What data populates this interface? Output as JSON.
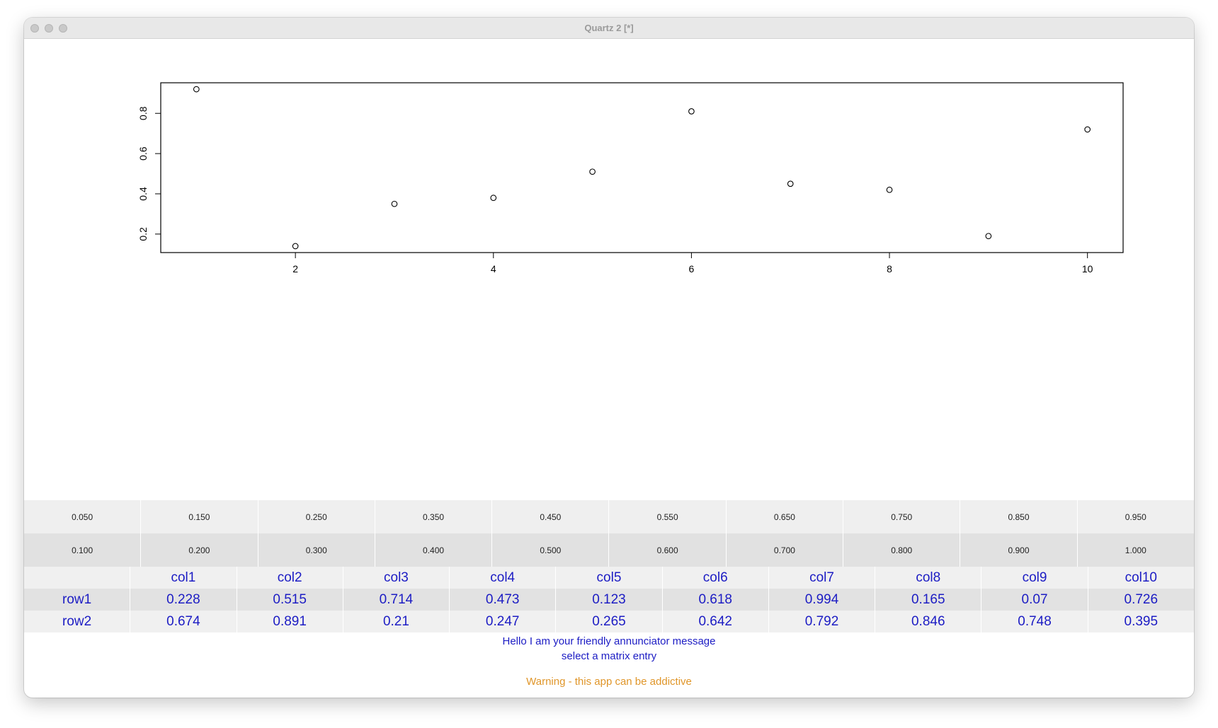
{
  "window": {
    "title": "Quartz 2 [*]"
  },
  "chart_data": {
    "type": "scatter",
    "x": [
      1,
      2,
      3,
      4,
      5,
      6,
      7,
      8,
      9,
      10
    ],
    "y": [
      0.92,
      0.14,
      0.35,
      0.38,
      0.51,
      0.81,
      0.45,
      0.42,
      0.19,
      0.72
    ],
    "xticks": [
      2,
      4,
      6,
      8,
      10
    ],
    "yticks": [
      0.2,
      0.4,
      0.6,
      0.8
    ],
    "xlim": [
      0.64,
      10.36
    ],
    "ylim": [
      0.108,
      0.952
    ],
    "title": "",
    "xlabel": "",
    "ylabel": "",
    "grid": false
  },
  "sliders": {
    "row1": [
      "0.050",
      "0.150",
      "0.250",
      "0.350",
      "0.450",
      "0.550",
      "0.650",
      "0.750",
      "0.850",
      "0.950"
    ],
    "row2": [
      "0.100",
      "0.200",
      "0.300",
      "0.400",
      "0.500",
      "0.600",
      "0.700",
      "0.800",
      "0.900",
      "1.000"
    ]
  },
  "matrix": {
    "columns": [
      "col1",
      "col2",
      "col3",
      "col4",
      "col5",
      "col6",
      "col7",
      "col8",
      "col9",
      "col10"
    ],
    "rows": [
      {
        "label": "row1",
        "values": [
          "0.228",
          "0.515",
          "0.714",
          "0.473",
          "0.123",
          "0.618",
          "0.994",
          "0.165",
          "0.07",
          "0.726"
        ]
      },
      {
        "label": "row2",
        "values": [
          "0.674",
          "0.891",
          "0.21",
          "0.247",
          "0.265",
          "0.642",
          "0.792",
          "0.846",
          "0.748",
          "0.395"
        ]
      }
    ]
  },
  "messages": {
    "annunciator": "Hello I am your friendly annunciator message",
    "instruction": "select a matrix entry",
    "warning": "Warning - this app can be addictive"
  },
  "colors": {
    "text_blue": "#1c1cc4",
    "warning_orange": "#e0962a"
  }
}
